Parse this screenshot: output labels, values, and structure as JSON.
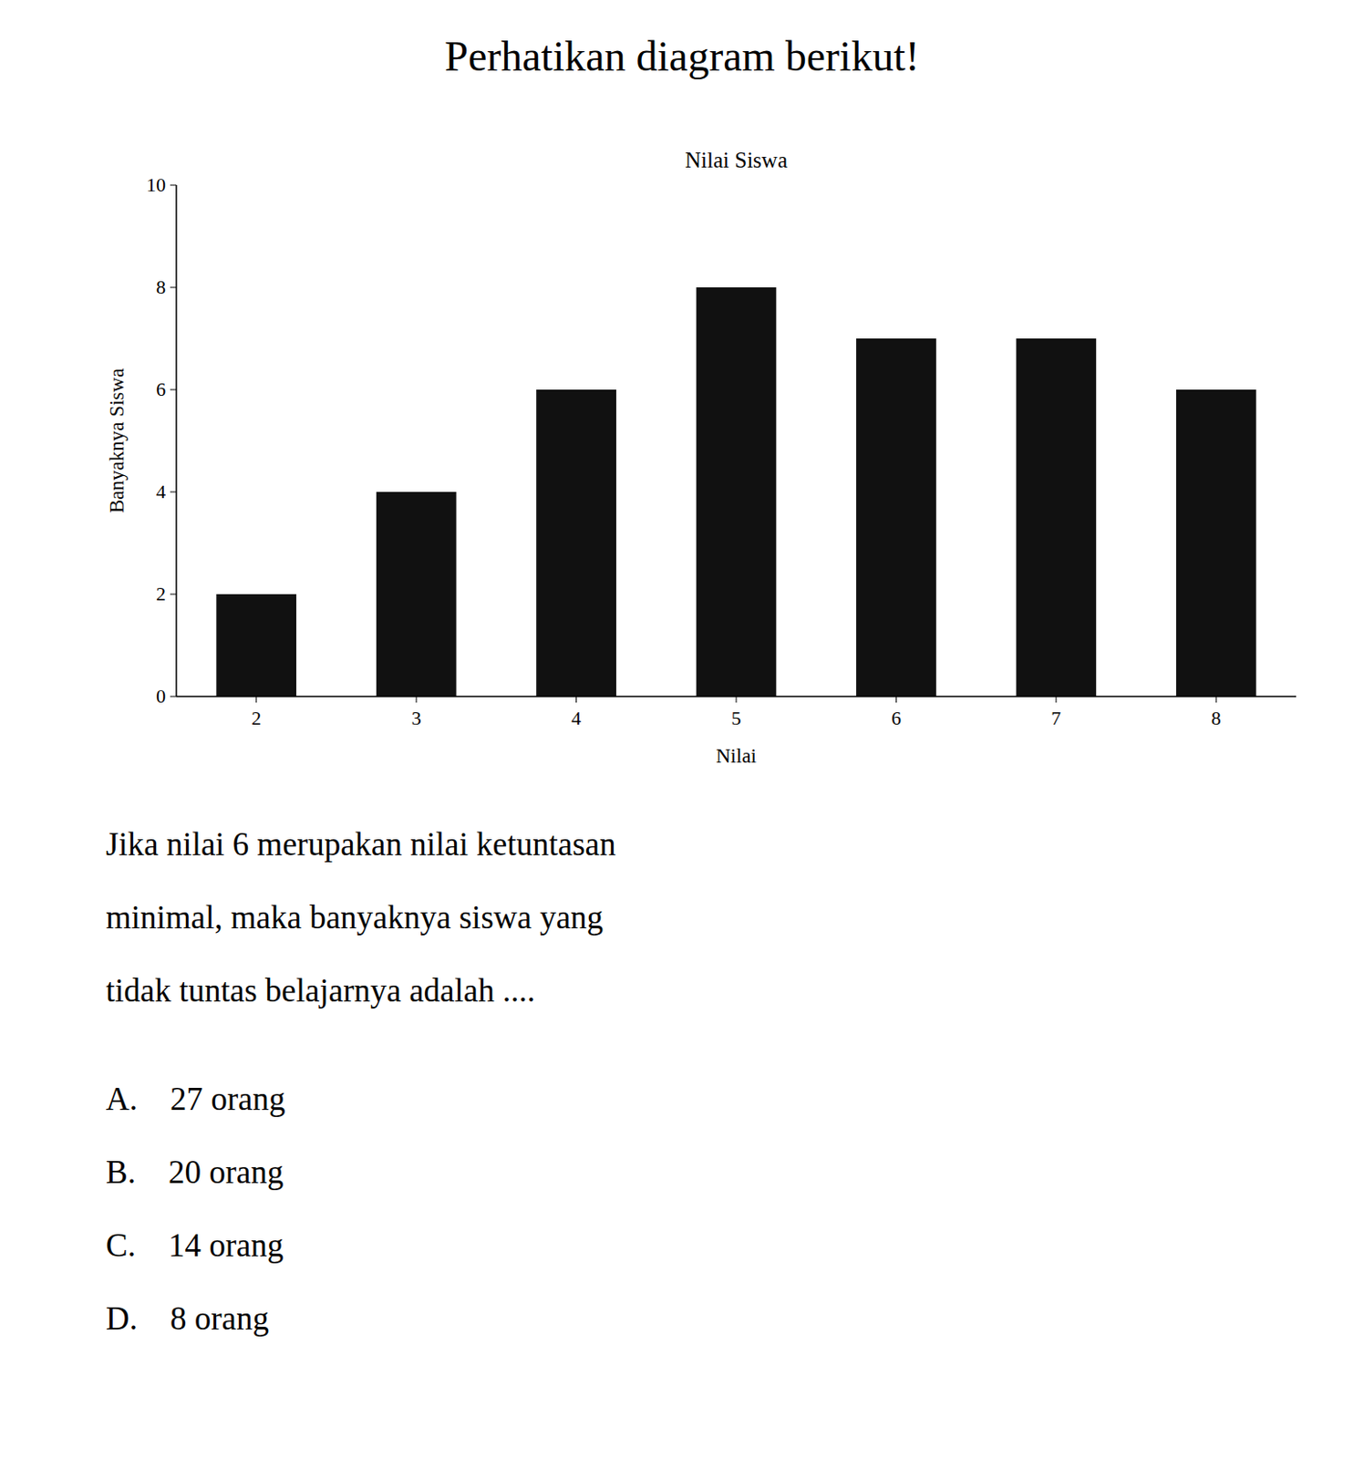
{
  "title": "Perhatikan diagram berikut!",
  "chart_data": {
    "type": "bar",
    "title": "Nilai Siswa",
    "x_label": "Nilai",
    "y_label": "Banyaknya Siswa",
    "categories": [
      2,
      3,
      4,
      5,
      6,
      7,
      8
    ],
    "values": [
      2,
      4,
      6,
      8,
      7,
      7,
      6
    ],
    "color": "#111111",
    "ylim": [
      0,
      10
    ],
    "yticks": [
      0,
      2,
      4,
      6,
      8,
      10
    ],
    "grid": false
  },
  "question": [
    "Jika nilai 6 merupakan nilai ketuntasan",
    "minimal, maka banyaknya siswa yang",
    "tidak tuntas belajarnya adalah ...."
  ],
  "options": [
    "A.    27 orang",
    "B.    20 orang",
    "C.    14 orang",
    "D.    8 orang"
  ]
}
